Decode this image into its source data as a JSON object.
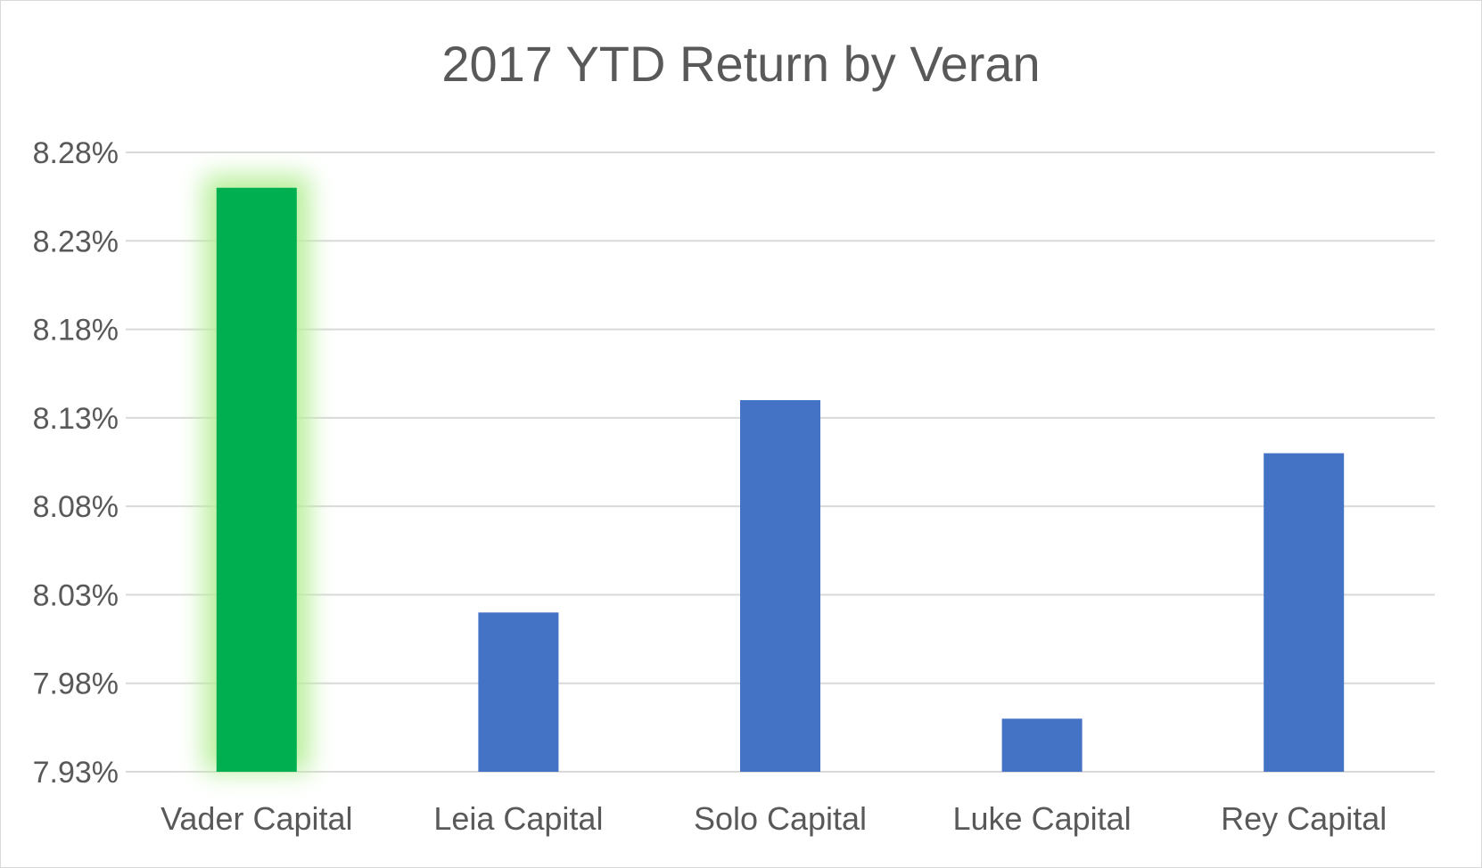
{
  "chart_data": {
    "type": "bar",
    "title": "2017 YTD Return by Veran",
    "xlabel": "",
    "ylabel": "",
    "categories": [
      "Vader Capital",
      "Leia Capital",
      "Solo Capital",
      "Luke Capital",
      "Rey Capital"
    ],
    "values": [
      8.26,
      8.02,
      8.14,
      7.96,
      8.11
    ],
    "unit": "%",
    "ylim": [
      7.93,
      8.28
    ],
    "yticks": [
      "8.28%",
      "8.23%",
      "8.18%",
      "8.13%",
      "8.08%",
      "8.03%",
      "7.98%",
      "7.93%"
    ],
    "ytick_values": [
      8.28,
      8.23,
      8.18,
      8.13,
      8.08,
      8.03,
      7.98,
      7.93
    ],
    "grid": true,
    "legend": "none",
    "colors": {
      "default_bar": "#4472c4",
      "highlight_bar": "#00b050",
      "highlight_glow": "#b7ef9a",
      "gridline": "#d9d9d9",
      "text": "#595959"
    },
    "highlight_category": "Vader Capital"
  }
}
